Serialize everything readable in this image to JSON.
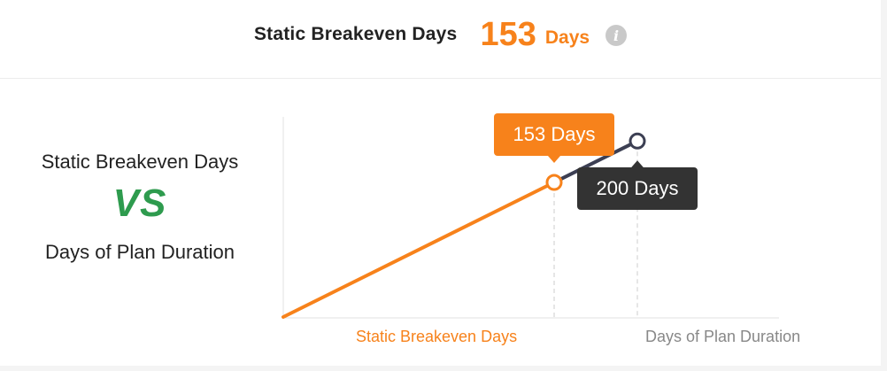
{
  "header": {
    "title": "Static Breakeven Days",
    "value": "153",
    "unit": "Days",
    "info_icon": "info-icon"
  },
  "left_panel": {
    "line1": "Static Breakeven Days",
    "vs": "VS",
    "line2": "Days of Plan Duration"
  },
  "colors": {
    "accent": "#f7821b",
    "dark": "#333333",
    "line_dark": "#3c3f53",
    "vs_green": "#2e9b4e"
  },
  "chart_data": {
    "type": "line",
    "series": [
      {
        "name": "Static Breakeven Days",
        "x": [
          0,
          153
        ],
        "y": [
          0,
          153
        ],
        "color": "#f7821b"
      },
      {
        "name": "Days of Plan Duration",
        "x": [
          153,
          200
        ],
        "y": [
          153,
          200
        ],
        "color": "#3c3f53"
      }
    ],
    "markers": [
      {
        "x": 153,
        "label": "153 Days",
        "axis_label": "Static Breakeven Days"
      },
      {
        "x": 200,
        "label": "200 Days",
        "axis_label": "Days of Plan Duration"
      }
    ]
  }
}
